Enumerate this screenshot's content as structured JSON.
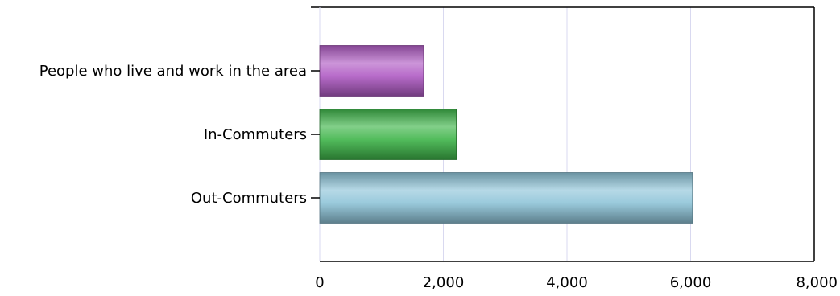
{
  "chart_data": {
    "type": "bar",
    "orientation": "horizontal",
    "title": "",
    "xlabel": "",
    "ylabel": "",
    "categories": [
      "People who live and work in the area",
      "In-Commuters",
      "Out-Commuters"
    ],
    "values": [
      1680,
      2210,
      6030
    ],
    "bar_colors": [
      "#b05cc4",
      "#3fb54a",
      "#8fc4d8"
    ],
    "xlim": [
      0,
      8000
    ],
    "x_ticks": [
      0,
      2000,
      4000,
      6000,
      8000
    ],
    "x_tick_labels": [
      "0",
      "2,000",
      "4,000",
      "6,000",
      "8,000"
    ],
    "grid": "vertical",
    "grid_color": "#d9d9f0",
    "legend": "none"
  }
}
